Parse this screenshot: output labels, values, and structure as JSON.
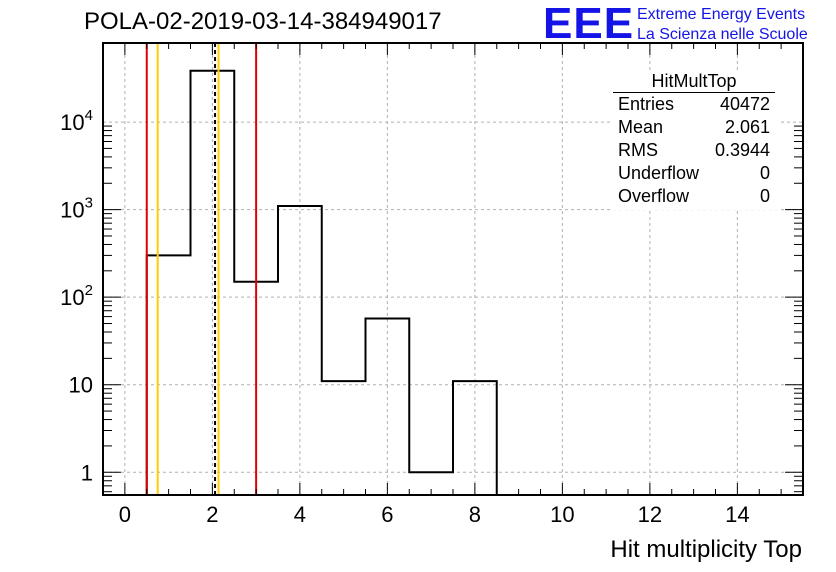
{
  "chart_data": {
    "type": "bar",
    "title": "POLA-02-2019-03-14-384949017",
    "xlabel": "Hit multiplicity Top",
    "ylabel": "",
    "yscale": "log",
    "xlim": [
      -0.5,
      15.5
    ],
    "ylim": [
      0.55,
      80000
    ],
    "grid": true,
    "bins": [
      {
        "lo": 0.5,
        "hi": 1.5,
        "value": 300
      },
      {
        "lo": 1.5,
        "hi": 2.5,
        "value": 38500
      },
      {
        "lo": 2.5,
        "hi": 3.5,
        "value": 150
      },
      {
        "lo": 3.5,
        "hi": 4.5,
        "value": 1100
      },
      {
        "lo": 4.5,
        "hi": 5.5,
        "value": 11
      },
      {
        "lo": 5.5,
        "hi": 6.5,
        "value": 57
      },
      {
        "lo": 6.5,
        "hi": 7.5,
        "value": 1
      },
      {
        "lo": 7.5,
        "hi": 8.5,
        "value": 11
      }
    ],
    "x_ticks": [
      0,
      2,
      4,
      6,
      8,
      10,
      12,
      14
    ],
    "x_tick_labels": [
      "0",
      "2",
      "4",
      "6",
      "8",
      "10",
      "12",
      "14"
    ],
    "y_ticks": [
      {
        "value": 1,
        "base": "1",
        "exp": ""
      },
      {
        "value": 10,
        "base": "10",
        "exp": ""
      },
      {
        "value": 100,
        "base": "10",
        "exp": "2"
      },
      {
        "value": 1000,
        "base": "10",
        "exp": "3"
      },
      {
        "value": 10000,
        "base": "10",
        "exp": "4"
      }
    ],
    "markers": [
      {
        "x": 0.5,
        "color": "#e00000",
        "style": "solid"
      },
      {
        "x": 0.75,
        "color": "#ffcc00",
        "style": "solid"
      },
      {
        "x": 2.061,
        "color": "#000000",
        "style": "dashed"
      },
      {
        "x": 2.14,
        "color": "#ffcc00",
        "style": "solid"
      },
      {
        "x": 3.0,
        "color": "#e00000",
        "style": "solid"
      }
    ],
    "stats": {
      "name": "HitMultTop",
      "entries_label": "Entries",
      "entries": "40472",
      "mean_label": "Mean",
      "mean": "2.061",
      "rms_label": "RMS",
      "rms": "0.3944",
      "underflow_label": "Underflow",
      "underflow": "0",
      "overflow_label": "Overflow",
      "overflow": "0"
    }
  },
  "logo": {
    "mark": "EEE",
    "line1": "Extreme Energy Events",
    "line2": "La Scienza nelle Scuole",
    "color": "#1414e6"
  }
}
